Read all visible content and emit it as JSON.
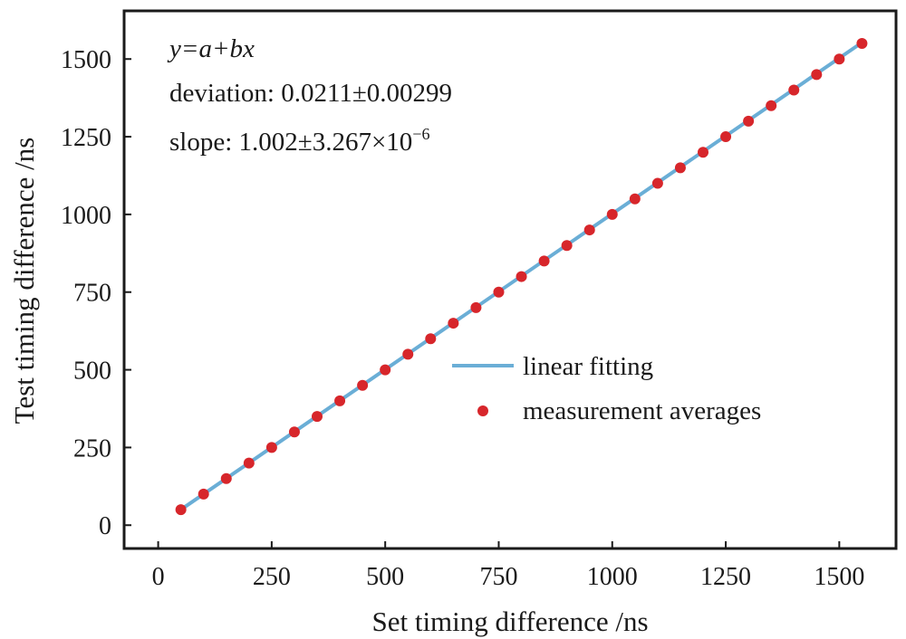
{
  "chart_data": {
    "type": "scatter",
    "xlabel": "Set timing difference /ns",
    "ylabel": "Test timing difference /ns",
    "xlim": [
      -75,
      1625
    ],
    "ylim": [
      -75,
      1655
    ],
    "xticks": [
      0,
      250,
      500,
      750,
      1000,
      1250,
      1500
    ],
    "yticks": [
      0,
      250,
      500,
      750,
      1000,
      1250,
      1500
    ],
    "xtick_labels": [
      "0",
      "250",
      "500",
      "750",
      "1000",
      "1250",
      "1500"
    ],
    "ytick_labels": [
      "0",
      "250",
      "500",
      "750",
      "1000",
      "1250",
      "1500"
    ],
    "grid": false,
    "legend_position": "center-right",
    "annotation": {
      "equation": "y=a+bx",
      "deviation": "deviation: 0.0211±0.00299",
      "slope_prefix": "slope: 1.002±3.267×10",
      "slope_exponent": "−6"
    },
    "series": [
      {
        "name": "linear fitting",
        "kind": "line",
        "color": "#6aaed6",
        "x": [
          50,
          1550
        ],
        "y": [
          50.12,
          1553.12
        ]
      },
      {
        "name": "measurement averages",
        "kind": "scatter",
        "color": "#d7262b",
        "x": [
          50,
          100,
          150,
          200,
          250,
          300,
          350,
          400,
          450,
          500,
          550,
          600,
          650,
          700,
          750,
          800,
          850,
          900,
          950,
          1000,
          1050,
          1100,
          1150,
          1200,
          1250,
          1300,
          1350,
          1400,
          1450,
          1500,
          1550
        ],
        "y": [
          50,
          100,
          150,
          200,
          250,
          300,
          350,
          400,
          450,
          500,
          550,
          600,
          650,
          700,
          750,
          800,
          850,
          900,
          950,
          1000,
          1050,
          1100,
          1150,
          1200,
          1250,
          1300,
          1350,
          1400,
          1450,
          1500,
          1550
        ]
      }
    ]
  }
}
